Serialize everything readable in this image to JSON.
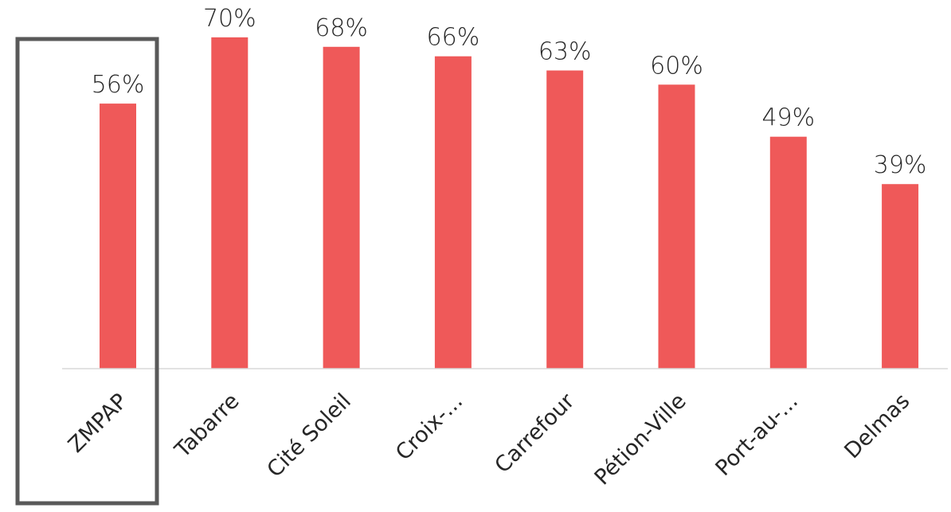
{
  "chart_data": {
    "type": "bar",
    "categories": [
      "ZMPAP",
      "Tabarre",
      "Cité Soleil",
      "Croix-...",
      "Carrefour",
      "Pétion-Ville",
      "Port-au-...",
      "Delmas"
    ],
    "values": [
      56,
      70,
      68,
      66,
      63,
      60,
      49,
      39
    ],
    "value_labels": [
      "56%",
      "70%",
      "68%",
      "66%",
      "63%",
      "60%",
      "49%",
      "39%"
    ],
    "unit": "%",
    "ylim": [
      0,
      72
    ],
    "grid": false,
    "legend": "none",
    "highlighted_category": "ZMPAP",
    "colors": {
      "bar": "#ef5959",
      "highlight_box": "#595959",
      "axis": "#d9d9d9",
      "text": "#262626"
    }
  }
}
